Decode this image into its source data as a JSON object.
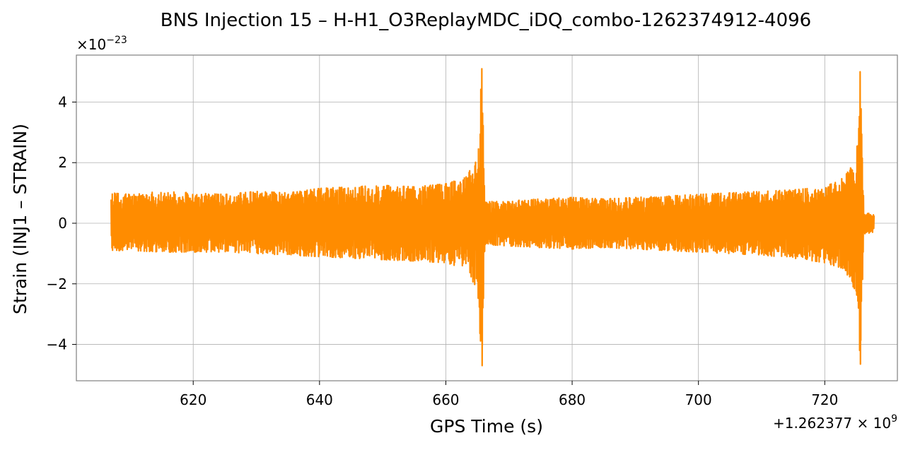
{
  "chart_data": {
    "type": "line",
    "title": "BNS Injection 15 – H-H1_O3ReplayMDC_iDQ_combo-1262374912-4096",
    "xlabel": "GPS Time (s)",
    "ylabel": "Strain (INJ1 – STRAIN)",
    "x_offset_label": "+1.262377 × 10",
    "x_offset_exponent": "9",
    "y_scale_prefix": "×10",
    "y_scale_exponent": "−23",
    "xlim": [
      601.5,
      731.5
    ],
    "ylim": [
      -5.2,
      5.55
    ],
    "x_ticks": [
      620,
      640,
      660,
      680,
      700,
      720
    ],
    "x_tick_labels": [
      "620",
      "640",
      "660",
      "680",
      "700",
      "720"
    ],
    "y_ticks": [
      -4,
      -2,
      0,
      2,
      4
    ],
    "y_tick_labels": [
      "−4",
      "−2",
      "0",
      "2",
      "4"
    ],
    "grid": true,
    "line_color": "#ff8c00",
    "series": [
      {
        "x_range": [
          607.0,
          727.8
        ],
        "envelope_x": [
          607,
          610,
          615,
          620,
          625,
          630,
          635,
          640,
          645,
          650,
          655,
          660,
          663,
          665,
          665.7,
          666.2,
          670,
          675,
          680,
          685,
          690,
          695,
          700,
          705,
          710,
          715,
          720,
          723,
          725,
          725.6,
          726.2,
          727.8
        ],
        "envelope_upper": [
          1.0,
          0.95,
          1.05,
          1.0,
          0.95,
          1.05,
          1.0,
          1.15,
          1.2,
          1.25,
          1.2,
          1.3,
          1.5,
          2.1,
          5.1,
          0.7,
          0.75,
          0.8,
          0.85,
          0.8,
          0.85,
          0.9,
          0.95,
          1.0,
          1.05,
          1.1,
          1.2,
          1.5,
          2.1,
          5.0,
          0.35,
          0.3
        ],
        "envelope_lower": [
          -0.9,
          -0.9,
          -0.95,
          -0.95,
          -0.95,
          -1.0,
          -1.05,
          -1.1,
          -1.15,
          -1.2,
          -1.25,
          -1.3,
          -1.5,
          -2.2,
          -4.7,
          -0.7,
          -0.75,
          -0.8,
          -0.85,
          -0.8,
          -0.85,
          -0.9,
          -0.95,
          -1.0,
          -1.05,
          -1.15,
          -1.3,
          -1.5,
          -2.3,
          -4.65,
          -0.35,
          -0.3
        ]
      }
    ]
  }
}
